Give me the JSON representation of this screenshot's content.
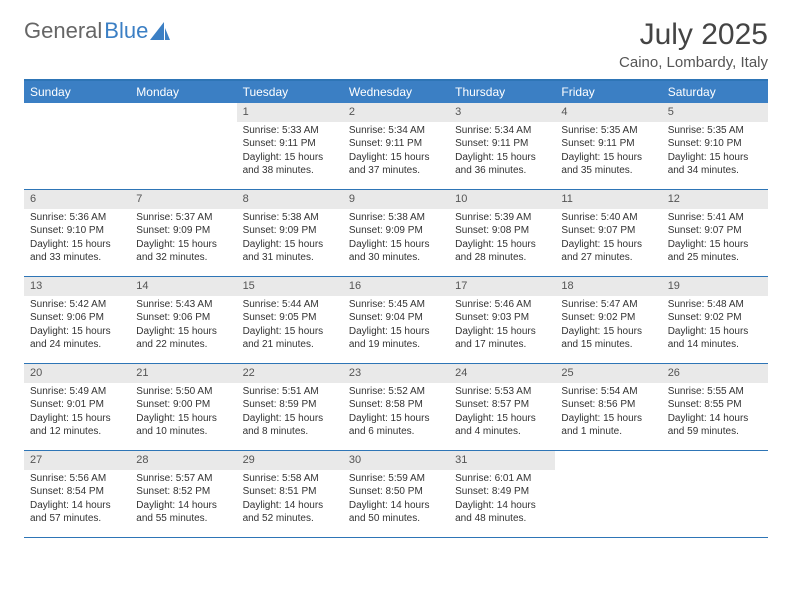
{
  "logo": {
    "part1": "General",
    "part2": "Blue"
  },
  "brand_color": "#3b7fc4",
  "header_bg": "#3b7fc4",
  "daynum_bg": "#e9e9e9",
  "title": "July 2025",
  "location": "Caino, Lombardy, Italy",
  "day_headers": [
    "Sunday",
    "Monday",
    "Tuesday",
    "Wednesday",
    "Thursday",
    "Friday",
    "Saturday"
  ],
  "weeks": [
    [
      null,
      null,
      {
        "n": "1",
        "sr": "Sunrise: 5:33 AM",
        "ss": "Sunset: 9:11 PM",
        "dl1": "Daylight: 15 hours",
        "dl2": "and 38 minutes."
      },
      {
        "n": "2",
        "sr": "Sunrise: 5:34 AM",
        "ss": "Sunset: 9:11 PM",
        "dl1": "Daylight: 15 hours",
        "dl2": "and 37 minutes."
      },
      {
        "n": "3",
        "sr": "Sunrise: 5:34 AM",
        "ss": "Sunset: 9:11 PM",
        "dl1": "Daylight: 15 hours",
        "dl2": "and 36 minutes."
      },
      {
        "n": "4",
        "sr": "Sunrise: 5:35 AM",
        "ss": "Sunset: 9:11 PM",
        "dl1": "Daylight: 15 hours",
        "dl2": "and 35 minutes."
      },
      {
        "n": "5",
        "sr": "Sunrise: 5:35 AM",
        "ss": "Sunset: 9:10 PM",
        "dl1": "Daylight: 15 hours",
        "dl2": "and 34 minutes."
      }
    ],
    [
      {
        "n": "6",
        "sr": "Sunrise: 5:36 AM",
        "ss": "Sunset: 9:10 PM",
        "dl1": "Daylight: 15 hours",
        "dl2": "and 33 minutes."
      },
      {
        "n": "7",
        "sr": "Sunrise: 5:37 AM",
        "ss": "Sunset: 9:09 PM",
        "dl1": "Daylight: 15 hours",
        "dl2": "and 32 minutes."
      },
      {
        "n": "8",
        "sr": "Sunrise: 5:38 AM",
        "ss": "Sunset: 9:09 PM",
        "dl1": "Daylight: 15 hours",
        "dl2": "and 31 minutes."
      },
      {
        "n": "9",
        "sr": "Sunrise: 5:38 AM",
        "ss": "Sunset: 9:09 PM",
        "dl1": "Daylight: 15 hours",
        "dl2": "and 30 minutes."
      },
      {
        "n": "10",
        "sr": "Sunrise: 5:39 AM",
        "ss": "Sunset: 9:08 PM",
        "dl1": "Daylight: 15 hours",
        "dl2": "and 28 minutes."
      },
      {
        "n": "11",
        "sr": "Sunrise: 5:40 AM",
        "ss": "Sunset: 9:07 PM",
        "dl1": "Daylight: 15 hours",
        "dl2": "and 27 minutes."
      },
      {
        "n": "12",
        "sr": "Sunrise: 5:41 AM",
        "ss": "Sunset: 9:07 PM",
        "dl1": "Daylight: 15 hours",
        "dl2": "and 25 minutes."
      }
    ],
    [
      {
        "n": "13",
        "sr": "Sunrise: 5:42 AM",
        "ss": "Sunset: 9:06 PM",
        "dl1": "Daylight: 15 hours",
        "dl2": "and 24 minutes."
      },
      {
        "n": "14",
        "sr": "Sunrise: 5:43 AM",
        "ss": "Sunset: 9:06 PM",
        "dl1": "Daylight: 15 hours",
        "dl2": "and 22 minutes."
      },
      {
        "n": "15",
        "sr": "Sunrise: 5:44 AM",
        "ss": "Sunset: 9:05 PM",
        "dl1": "Daylight: 15 hours",
        "dl2": "and 21 minutes."
      },
      {
        "n": "16",
        "sr": "Sunrise: 5:45 AM",
        "ss": "Sunset: 9:04 PM",
        "dl1": "Daylight: 15 hours",
        "dl2": "and 19 minutes."
      },
      {
        "n": "17",
        "sr": "Sunrise: 5:46 AM",
        "ss": "Sunset: 9:03 PM",
        "dl1": "Daylight: 15 hours",
        "dl2": "and 17 minutes."
      },
      {
        "n": "18",
        "sr": "Sunrise: 5:47 AM",
        "ss": "Sunset: 9:02 PM",
        "dl1": "Daylight: 15 hours",
        "dl2": "and 15 minutes."
      },
      {
        "n": "19",
        "sr": "Sunrise: 5:48 AM",
        "ss": "Sunset: 9:02 PM",
        "dl1": "Daylight: 15 hours",
        "dl2": "and 14 minutes."
      }
    ],
    [
      {
        "n": "20",
        "sr": "Sunrise: 5:49 AM",
        "ss": "Sunset: 9:01 PM",
        "dl1": "Daylight: 15 hours",
        "dl2": "and 12 minutes."
      },
      {
        "n": "21",
        "sr": "Sunrise: 5:50 AM",
        "ss": "Sunset: 9:00 PM",
        "dl1": "Daylight: 15 hours",
        "dl2": "and 10 minutes."
      },
      {
        "n": "22",
        "sr": "Sunrise: 5:51 AM",
        "ss": "Sunset: 8:59 PM",
        "dl1": "Daylight: 15 hours",
        "dl2": "and 8 minutes."
      },
      {
        "n": "23",
        "sr": "Sunrise: 5:52 AM",
        "ss": "Sunset: 8:58 PM",
        "dl1": "Daylight: 15 hours",
        "dl2": "and 6 minutes."
      },
      {
        "n": "24",
        "sr": "Sunrise: 5:53 AM",
        "ss": "Sunset: 8:57 PM",
        "dl1": "Daylight: 15 hours",
        "dl2": "and 4 minutes."
      },
      {
        "n": "25",
        "sr": "Sunrise: 5:54 AM",
        "ss": "Sunset: 8:56 PM",
        "dl1": "Daylight: 15 hours",
        "dl2": "and 1 minute."
      },
      {
        "n": "26",
        "sr": "Sunrise: 5:55 AM",
        "ss": "Sunset: 8:55 PM",
        "dl1": "Daylight: 14 hours",
        "dl2": "and 59 minutes."
      }
    ],
    [
      {
        "n": "27",
        "sr": "Sunrise: 5:56 AM",
        "ss": "Sunset: 8:54 PM",
        "dl1": "Daylight: 14 hours",
        "dl2": "and 57 minutes."
      },
      {
        "n": "28",
        "sr": "Sunrise: 5:57 AM",
        "ss": "Sunset: 8:52 PM",
        "dl1": "Daylight: 14 hours",
        "dl2": "and 55 minutes."
      },
      {
        "n": "29",
        "sr": "Sunrise: 5:58 AM",
        "ss": "Sunset: 8:51 PM",
        "dl1": "Daylight: 14 hours",
        "dl2": "and 52 minutes."
      },
      {
        "n": "30",
        "sr": "Sunrise: 5:59 AM",
        "ss": "Sunset: 8:50 PM",
        "dl1": "Daylight: 14 hours",
        "dl2": "and 50 minutes."
      },
      {
        "n": "31",
        "sr": "Sunrise: 6:01 AM",
        "ss": "Sunset: 8:49 PM",
        "dl1": "Daylight: 14 hours",
        "dl2": "and 48 minutes."
      },
      null,
      null
    ]
  ]
}
